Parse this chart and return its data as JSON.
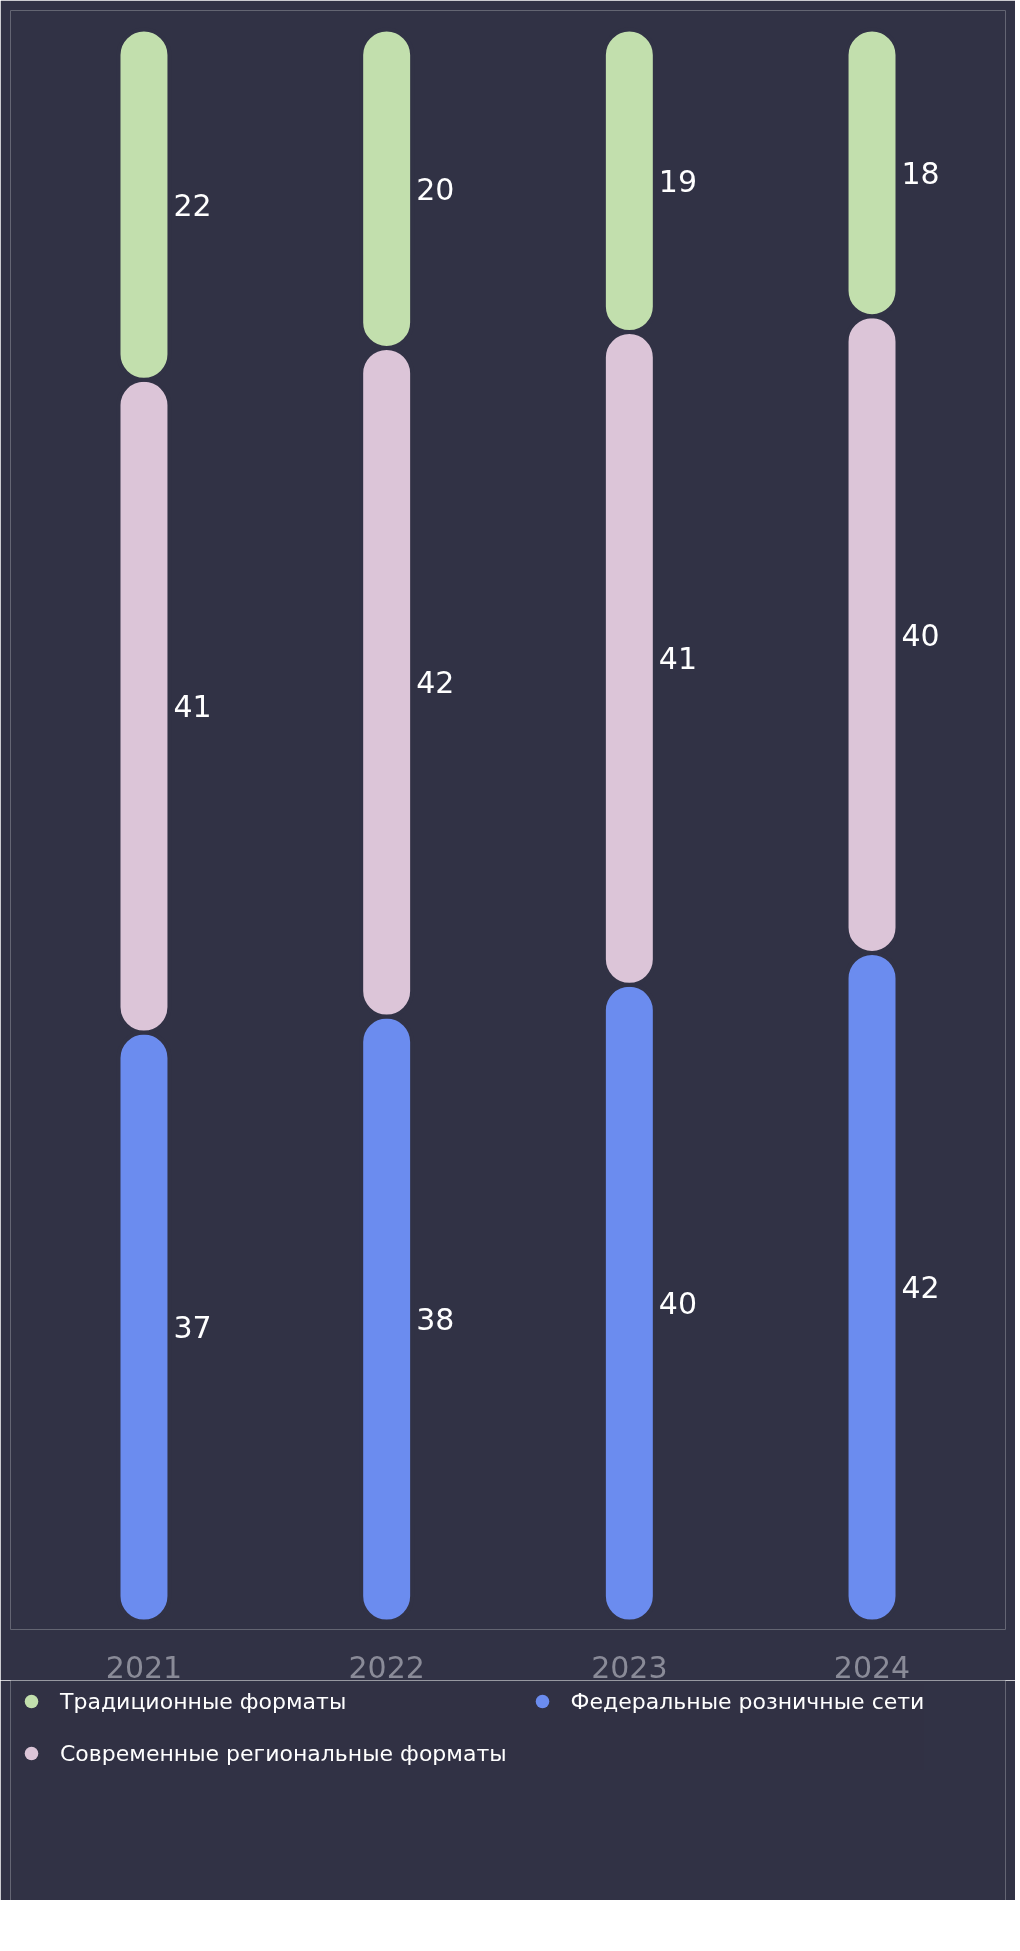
{
  "chart_data": {
    "type": "bar",
    "stacked": true,
    "data_labels": true,
    "legend": "bottom",
    "grid": false,
    "categories": [
      "2021",
      "2022",
      "2023",
      "2024"
    ],
    "series": [
      {
        "name": "Федеральные розничные сети",
        "color": "#6b8cef",
        "values": [
          37,
          38,
          40,
          42
        ]
      },
      {
        "name": "Современные региональные форматы",
        "color": "#dcc5d8",
        "values": [
          41,
          42,
          41,
          40
        ]
      },
      {
        "name": "Традиционные форматы",
        "color": "#c2dfad",
        "values": [
          22,
          20,
          19,
          18
        ]
      }
    ]
  }
}
